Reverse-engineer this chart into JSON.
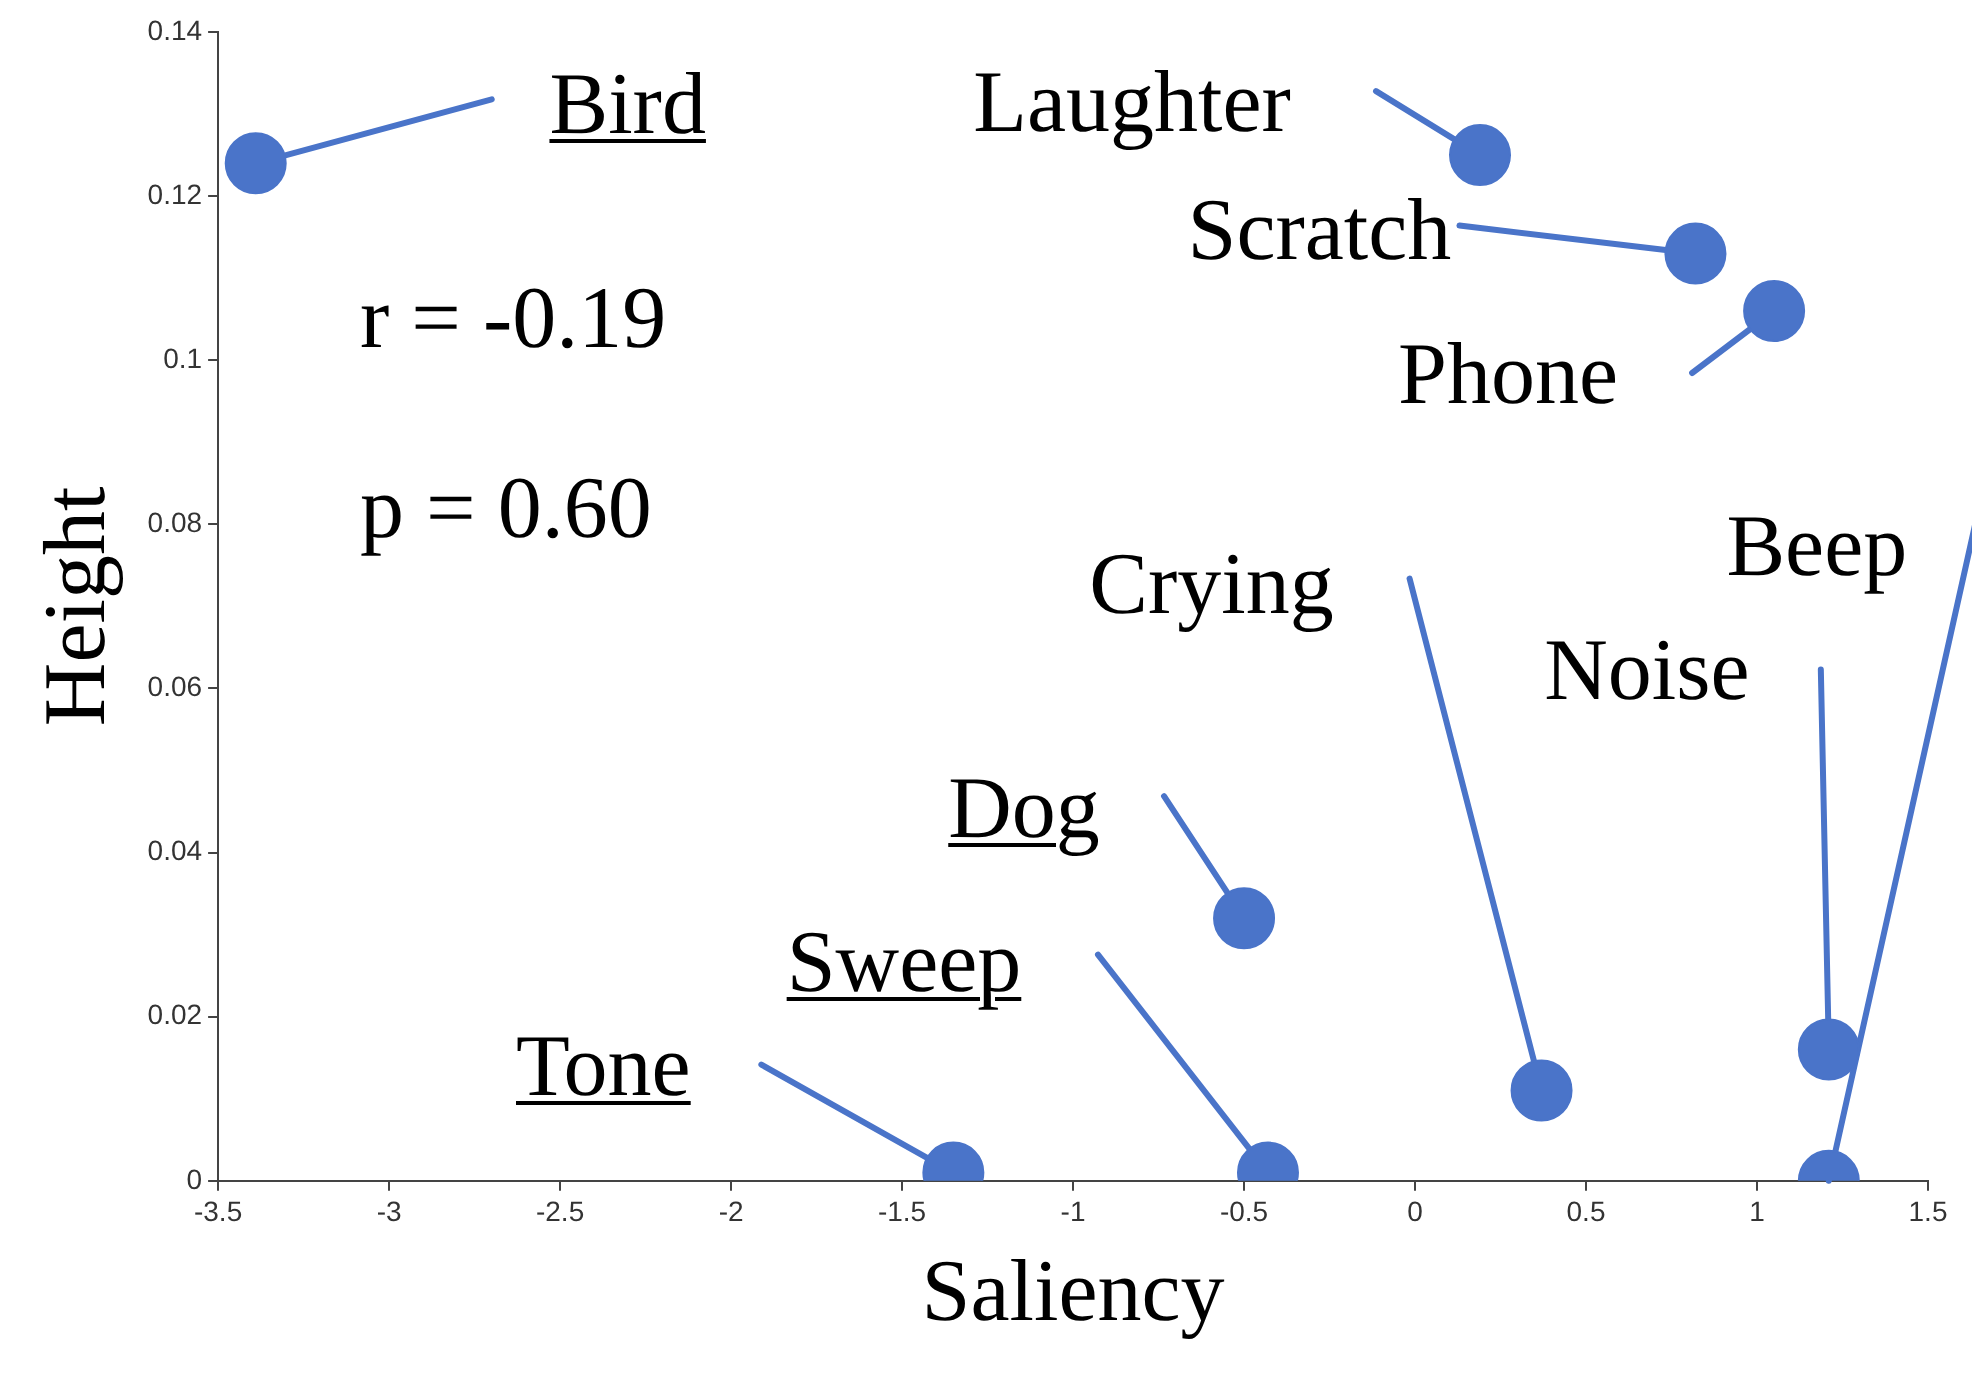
{
  "chart_data": {
    "type": "scatter",
    "xlabel": "Saliency",
    "ylabel": "Height",
    "x": [
      -3.39,
      0.19,
      0.82,
      1.05,
      0.37,
      1.21,
      1.21,
      -0.5,
      -0.43,
      -1.35
    ],
    "series": [
      {
        "color": "#4a74c9",
        "values": [
          0.124,
          0.125,
          0.113,
          0.106,
          0.011,
          0.016,
          0.0,
          0.032,
          0.001,
          0.001
        ]
      }
    ],
    "xlim": [
      -3.5,
      1.5
    ],
    "xticks": [
      -3.5,
      -3,
      -2.5,
      -2,
      -1.5,
      -1,
      -0.5,
      0,
      0.5,
      1,
      1.5
    ],
    "ylim": [
      0,
      0.14
    ],
    "yticks": [
      0,
      0.02,
      0.04,
      0.06,
      0.08,
      0.1,
      0.12,
      0.14
    ],
    "marker": "circle",
    "grid": false,
    "legend": false,
    "annotations": [
      {
        "text": "Bird",
        "x": -3.39,
        "y": 0.124
      },
      {
        "text": "Laughter",
        "x": 0.19,
        "y": 0.125
      },
      {
        "text": "Scratch",
        "x": 0.82,
        "y": 0.113
      },
      {
        "text": "Phone",
        "x": 1.05,
        "y": 0.106
      },
      {
        "text": "Crying",
        "x": 0.37,
        "y": 0.011
      },
      {
        "text": "Noise",
        "x": 1.21,
        "y": 0.016
      },
      {
        "text": "Beep",
        "x": 1.21,
        "y": 0.0
      },
      {
        "text": "Dog",
        "x": -0.5,
        "y": 0.032
      },
      {
        "text": "Sweep",
        "x": -0.43,
        "y": 0.001
      },
      {
        "text": "Tone",
        "x": -1.35,
        "y": 0.001
      },
      "r = -0.19",
      "p = 0.60"
    ]
  }
}
